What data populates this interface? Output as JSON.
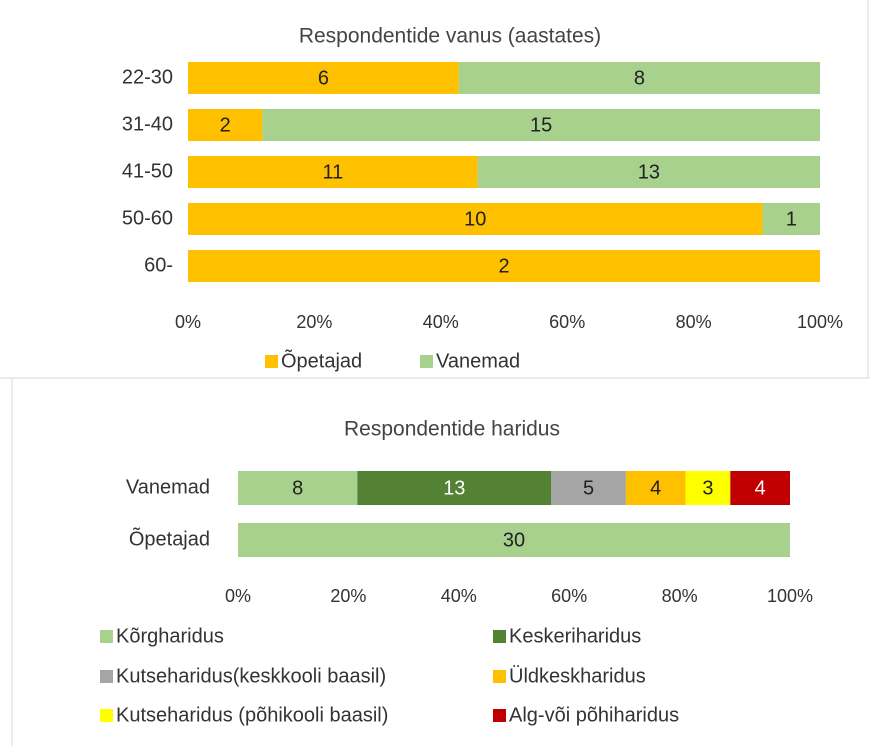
{
  "chart_data": [
    {
      "type": "bar",
      "orientation": "horizontal",
      "stacking": "percent",
      "title": "Respondentide  vanus (aastates)",
      "categories": [
        "22-30",
        "31-40",
        "41-50",
        "50-60",
        "60-"
      ],
      "series": [
        {
          "name": "Õpetajad",
          "color": "#ffc000",
          "values": [
            6,
            2,
            11,
            10,
            2
          ]
        },
        {
          "name": "Vanemad",
          "color": "#a9d18e",
          "values": [
            8,
            15,
            13,
            1,
            null
          ]
        }
      ],
      "xlim": [
        0,
        100
      ],
      "xticks": [
        {
          "value": 0,
          "label": "0%"
        },
        {
          "value": 20,
          "label": "20%"
        },
        {
          "value": 40,
          "label": "40%"
        },
        {
          "value": 60,
          "label": "60%"
        },
        {
          "value": 80,
          "label": "80%"
        },
        {
          "value": 100,
          "label": "100%"
        }
      ],
      "legend": "bottom"
    },
    {
      "type": "bar",
      "orientation": "horizontal",
      "stacking": "percent",
      "title": "Respondentide  haridus",
      "categories": [
        "Vanemad",
        "Õpetajad"
      ],
      "series": [
        {
          "name": "Kõrgharidus",
          "color": "#a9d18e",
          "values": [
            8,
            30
          ]
        },
        {
          "name": "Keskeriharidus",
          "color": "#548235",
          "values": [
            13,
            null
          ]
        },
        {
          "name": "Kutseharidus(keskkooli baasil)",
          "color": "#a5a5a5",
          "values": [
            5,
            null
          ]
        },
        {
          "name": "Üldkeskharidus",
          "color": "#ffc000",
          "values": [
            4,
            null
          ]
        },
        {
          "name": "Kutseharidus (põhikooli baasil)",
          "color": "#ffff00",
          "values": [
            3,
            null
          ]
        },
        {
          "name": "Alg-või põhiharidus",
          "color": "#c00000",
          "values": [
            4,
            null
          ]
        }
      ],
      "xlim": [
        0,
        100
      ],
      "xticks": [
        {
          "value": 0,
          "label": "0%"
        },
        {
          "value": 20,
          "label": "20%"
        },
        {
          "value": 40,
          "label": "40%"
        },
        {
          "value": 60,
          "label": "60%"
        },
        {
          "value": 80,
          "label": "80%"
        },
        {
          "value": 100,
          "label": "100%"
        }
      ],
      "legend": "bottom"
    }
  ]
}
